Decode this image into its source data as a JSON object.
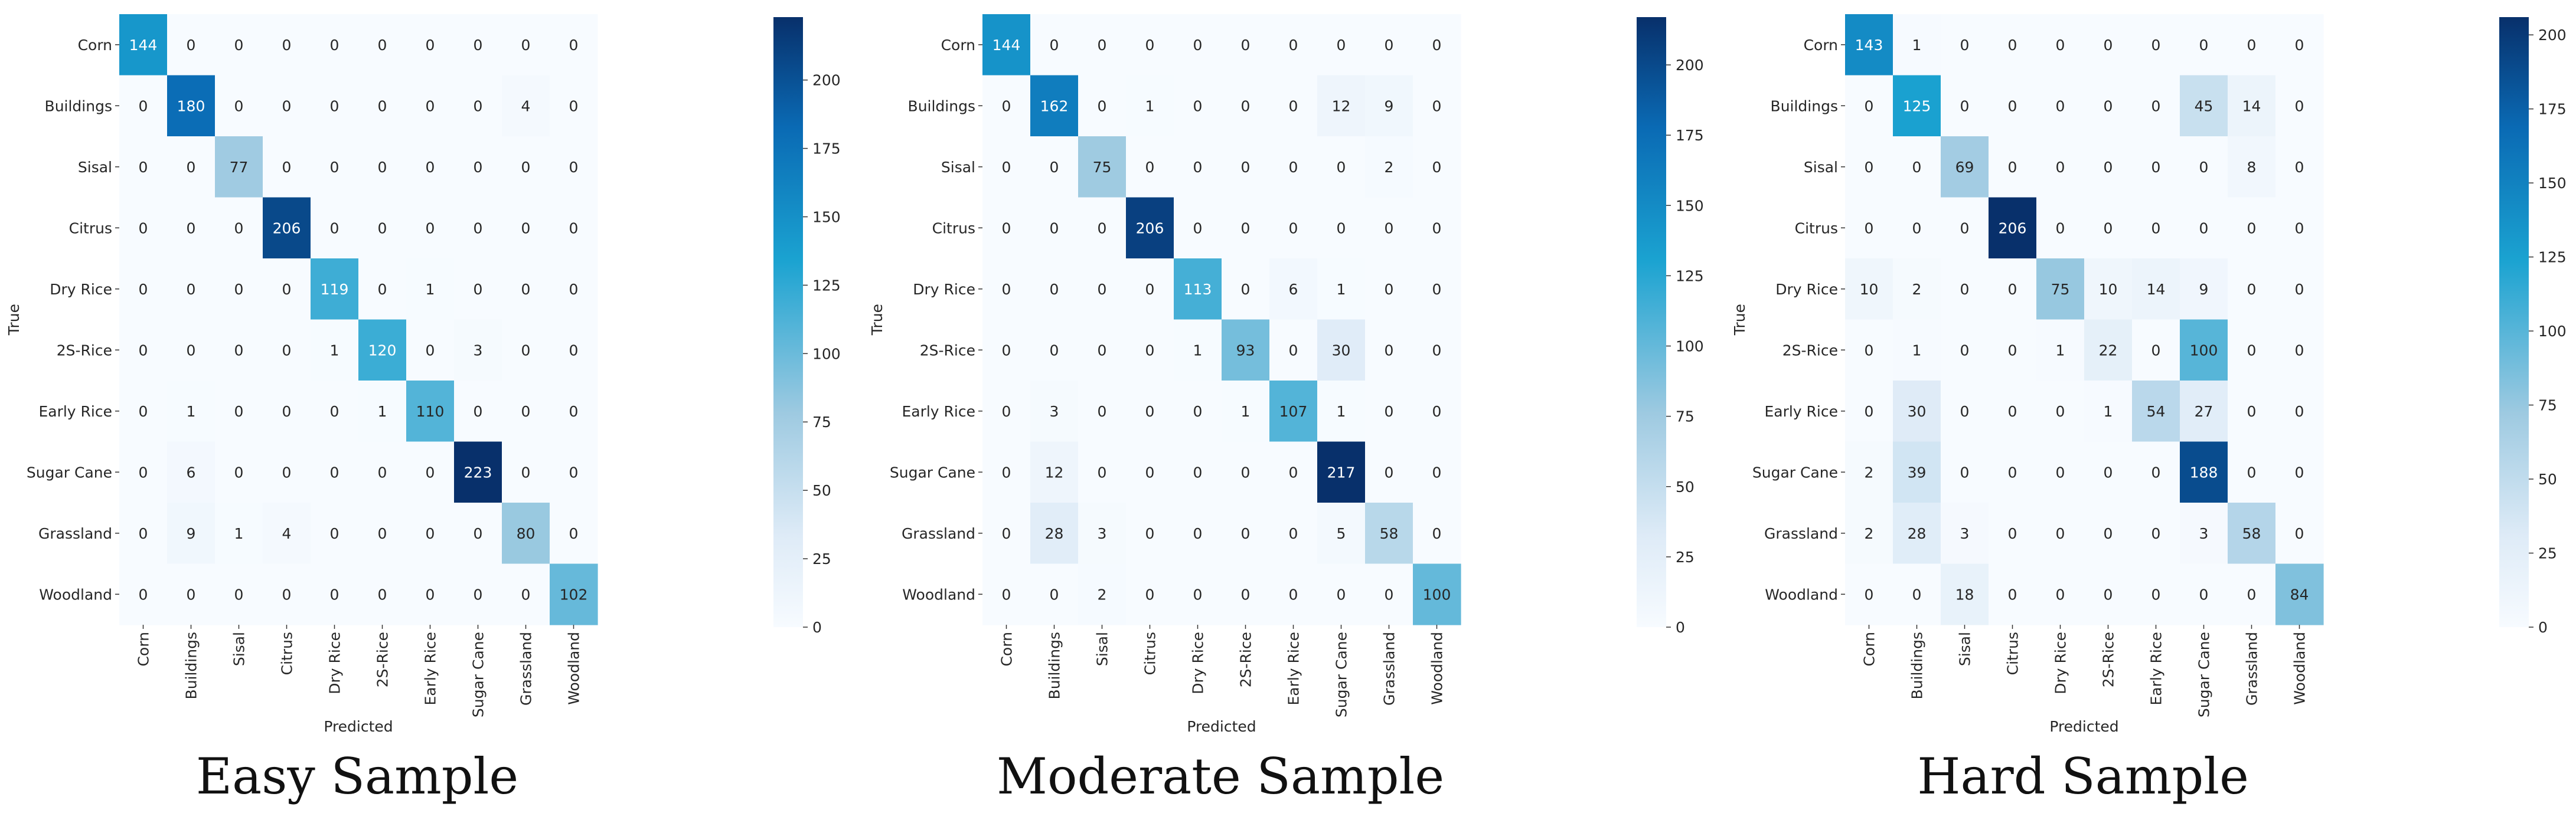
{
  "colors": {
    "low": "#f7fbff",
    "mid1": "#deebf7",
    "mid2": "#9ecae1",
    "mid3": "#1ba3d1",
    "mid4": "#0a6ab4",
    "high": "#08306b",
    "text_dark": "#262626",
    "text_light": "#ffffff"
  },
  "chart_data": [
    {
      "type": "heatmap",
      "title": "Easy Sample",
      "xlabel": "Predicted",
      "ylabel": "True",
      "categories": [
        "Corn",
        "Buildings",
        "Sisal",
        "Citrus",
        "Dry Rice",
        "2S-Rice",
        "Early Rice",
        "Sugar Cane",
        "Grassland",
        "Woodland"
      ],
      "vmin": 0,
      "vmax": 223,
      "colorbar_ticks": [
        0,
        25,
        50,
        75,
        100,
        125,
        150,
        175,
        200
      ],
      "matrix": [
        [
          144,
          0,
          0,
          0,
          0,
          0,
          0,
          0,
          0,
          0
        ],
        [
          0,
          180,
          0,
          0,
          0,
          0,
          0,
          0,
          4,
          0
        ],
        [
          0,
          0,
          77,
          0,
          0,
          0,
          0,
          0,
          0,
          0
        ],
        [
          0,
          0,
          0,
          206,
          0,
          0,
          0,
          0,
          0,
          0
        ],
        [
          0,
          0,
          0,
          0,
          119,
          0,
          1,
          0,
          0,
          0
        ],
        [
          0,
          0,
          0,
          0,
          1,
          120,
          0,
          3,
          0,
          0
        ],
        [
          0,
          1,
          0,
          0,
          0,
          1,
          110,
          0,
          0,
          0
        ],
        [
          0,
          6,
          0,
          0,
          0,
          0,
          0,
          223,
          0,
          0
        ],
        [
          0,
          9,
          1,
          4,
          0,
          0,
          0,
          0,
          80,
          0
        ],
        [
          0,
          0,
          0,
          0,
          0,
          0,
          0,
          0,
          0,
          102
        ]
      ]
    },
    {
      "type": "heatmap",
      "title": "Moderate Sample",
      "xlabel": "Predicted",
      "ylabel": "True",
      "categories": [
        "Corn",
        "Buildings",
        "Sisal",
        "Citrus",
        "Dry Rice",
        "2S-Rice",
        "Early Rice",
        "Sugar Cane",
        "Grassland",
        "Woodland"
      ],
      "vmin": 0,
      "vmax": 217,
      "colorbar_ticks": [
        0,
        25,
        50,
        75,
        100,
        125,
        150,
        175,
        200
      ],
      "matrix": [
        [
          144,
          0,
          0,
          0,
          0,
          0,
          0,
          0,
          0,
          0
        ],
        [
          0,
          162,
          0,
          1,
          0,
          0,
          0,
          12,
          9,
          0
        ],
        [
          0,
          0,
          75,
          0,
          0,
          0,
          0,
          0,
          2,
          0
        ],
        [
          0,
          0,
          0,
          206,
          0,
          0,
          0,
          0,
          0,
          0
        ],
        [
          0,
          0,
          0,
          0,
          113,
          0,
          6,
          1,
          0,
          0
        ],
        [
          0,
          0,
          0,
          0,
          1,
          93,
          0,
          30,
          0,
          0
        ],
        [
          0,
          3,
          0,
          0,
          0,
          1,
          107,
          1,
          0,
          0
        ],
        [
          0,
          12,
          0,
          0,
          0,
          0,
          0,
          217,
          0,
          0
        ],
        [
          0,
          28,
          3,
          0,
          0,
          0,
          0,
          5,
          58,
          0
        ],
        [
          0,
          0,
          2,
          0,
          0,
          0,
          0,
          0,
          0,
          100
        ]
      ]
    },
    {
      "type": "heatmap",
      "title": "Hard Sample",
      "xlabel": "Predicted",
      "ylabel": "True",
      "categories": [
        "Corn",
        "Buildings",
        "Sisal",
        "Citrus",
        "Dry Rice",
        "2S-Rice",
        "Early Rice",
        "Sugar Cane",
        "Grassland",
        "Woodland"
      ],
      "vmin": 0,
      "vmax": 206,
      "colorbar_ticks": [
        0,
        25,
        50,
        75,
        100,
        125,
        150,
        175,
        200
      ],
      "matrix": [
        [
          143,
          1,
          0,
          0,
          0,
          0,
          0,
          0,
          0,
          0
        ],
        [
          0,
          125,
          0,
          0,
          0,
          0,
          0,
          45,
          14,
          0
        ],
        [
          0,
          0,
          69,
          0,
          0,
          0,
          0,
          0,
          8,
          0
        ],
        [
          0,
          0,
          0,
          206,
          0,
          0,
          0,
          0,
          0,
          0
        ],
        [
          10,
          2,
          0,
          0,
          75,
          10,
          14,
          9,
          0,
          0
        ],
        [
          0,
          1,
          0,
          0,
          1,
          22,
          0,
          100,
          0,
          0
        ],
        [
          0,
          30,
          0,
          0,
          0,
          1,
          54,
          27,
          0,
          0
        ],
        [
          2,
          39,
          0,
          0,
          0,
          0,
          0,
          188,
          0,
          0
        ],
        [
          2,
          28,
          3,
          0,
          0,
          0,
          0,
          3,
          58,
          0
        ],
        [
          0,
          0,
          18,
          0,
          0,
          0,
          0,
          0,
          0,
          84
        ]
      ]
    }
  ]
}
